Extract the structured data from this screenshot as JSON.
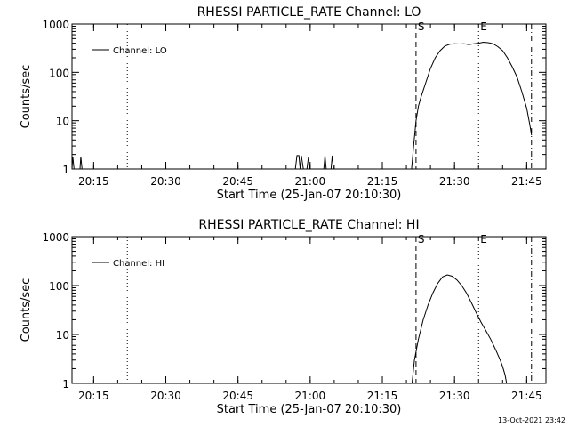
{
  "timestamp": "13-Oct-2021 23:42",
  "chart_data": [
    {
      "type": "line",
      "title": "RHESSI PARTICLE_RATE Channel: LO",
      "xlabel": "Start Time (25-Jan-07 20:10:30)",
      "ylabel": "Counts/sec",
      "yscale": "log",
      "ylim": [
        1,
        1000
      ],
      "xlim": [
        "20:10:30",
        "21:49:00"
      ],
      "x_ticks": [
        "20:15",
        "20:30",
        "20:45",
        "21:00",
        "21:15",
        "21:30",
        "21:45"
      ],
      "y_ticks": [
        "1",
        "10",
        "100",
        "1000"
      ],
      "legend": {
        "label": "Channel: LO",
        "position": "top-left"
      },
      "markers": [
        {
          "time": "20:22:00",
          "style": "dotted",
          "label": ""
        },
        {
          "time": "21:22:00",
          "style": "dashed",
          "label": "S"
        },
        {
          "time": "21:35:00",
          "style": "dotted",
          "label": "E"
        },
        {
          "time": "21:46:00",
          "style": "dashdot",
          "label": ""
        }
      ],
      "series": [
        {
          "name": "Channel: LO",
          "points": [
            [
              "20:10:30",
              1
            ],
            [
              "20:10:40",
              1.8
            ],
            [
              "20:10:55",
              1
            ],
            [
              "20:12:10",
              1
            ],
            [
              "20:12:20",
              1.8
            ],
            [
              "20:12:35",
              1
            ],
            [
              "20:56:55",
              1
            ],
            [
              "20:57:15",
              1.9
            ],
            [
              "20:57:40",
              1.9
            ],
            [
              "20:57:55",
              1
            ],
            [
              "20:58:10",
              1.9
            ],
            [
              "20:58:35",
              1
            ],
            [
              "20:59:20",
              1
            ],
            [
              "20:59:40",
              1.8
            ],
            [
              "20:59:55",
              1
            ],
            [
              "21:02:50",
              1
            ],
            [
              "21:03:05",
              1.9
            ],
            [
              "21:03:20",
              1
            ],
            [
              "21:04:20",
              1
            ],
            [
              "21:04:35",
              1.9
            ],
            [
              "21:04:50",
              1
            ],
            [
              "21:21:05",
              1
            ],
            [
              "21:21:30",
              3
            ],
            [
              "21:22:00",
              10
            ],
            [
              "21:22:30",
              20
            ],
            [
              "21:23:00",
              30
            ],
            [
              "21:24:00",
              60
            ],
            [
              "21:25:00",
              120
            ],
            [
              "21:26:00",
              200
            ],
            [
              "21:27:00",
              280
            ],
            [
              "21:28:00",
              350
            ],
            [
              "21:29:00",
              380
            ],
            [
              "21:30:00",
              390
            ],
            [
              "21:31:00",
              385
            ],
            [
              "21:32:00",
              390
            ],
            [
              "21:33:00",
              375
            ],
            [
              "21:34:00",
              390
            ],
            [
              "21:35:00",
              400
            ],
            [
              "21:36:00",
              420
            ],
            [
              "21:37:00",
              410
            ],
            [
              "21:38:00",
              390
            ],
            [
              "21:39:00",
              340
            ],
            [
              "21:40:00",
              280
            ],
            [
              "21:41:00",
              200
            ],
            [
              "21:42:00",
              130
            ],
            [
              "21:43:00",
              80
            ],
            [
              "21:44:00",
              40
            ],
            [
              "21:45:00",
              18
            ],
            [
              "21:45:40",
              8
            ],
            [
              "21:46:00",
              5
            ]
          ]
        }
      ]
    },
    {
      "type": "line",
      "title": "RHESSI PARTICLE_RATE Channel: HI",
      "xlabel": "Start Time (25-Jan-07 20:10:30)",
      "ylabel": "Counts/sec",
      "yscale": "log",
      "ylim": [
        1,
        1000
      ],
      "xlim": [
        "20:10:30",
        "21:49:00"
      ],
      "x_ticks": [
        "20:15",
        "20:30",
        "20:45",
        "21:00",
        "21:15",
        "21:30",
        "21:45"
      ],
      "y_ticks": [
        "1",
        "10",
        "100",
        "1000"
      ],
      "legend": {
        "label": "Channel: HI",
        "position": "top-left"
      },
      "markers": [
        {
          "time": "20:22:00",
          "style": "dotted",
          "label": ""
        },
        {
          "time": "21:22:00",
          "style": "dashed",
          "label": "S"
        },
        {
          "time": "21:35:00",
          "style": "dotted",
          "label": "E"
        },
        {
          "time": "21:46:00",
          "style": "dashdot",
          "label": ""
        }
      ],
      "series": [
        {
          "name": "Channel: HI",
          "points": [
            [
              "21:21:10",
              1
            ],
            [
              "21:21:40",
              3
            ],
            [
              "21:22:30",
              8
            ],
            [
              "21:23:30",
              20
            ],
            [
              "21:24:30",
              40
            ],
            [
              "21:25:30",
              70
            ],
            [
              "21:26:30",
              110
            ],
            [
              "21:27:30",
              150
            ],
            [
              "21:28:30",
              165
            ],
            [
              "21:29:30",
              155
            ],
            [
              "21:30:30",
              130
            ],
            [
              "21:31:30",
              100
            ],
            [
              "21:32:30",
              70
            ],
            [
              "21:33:30",
              45
            ],
            [
              "21:34:30",
              28
            ],
            [
              "21:35:30",
              18
            ],
            [
              "21:36:30",
              12
            ],
            [
              "21:37:30",
              8
            ],
            [
              "21:38:30",
              5
            ],
            [
              "21:39:30",
              3
            ],
            [
              "21:40:00",
              2.2
            ],
            [
              "21:40:30",
              1.5
            ],
            [
              "21:40:50",
              1
            ]
          ]
        }
      ]
    }
  ]
}
